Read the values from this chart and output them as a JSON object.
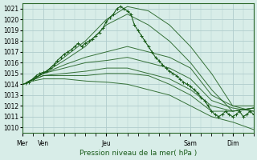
{
  "title": "",
  "xlabel": "Pression niveau de la mer( hPa )",
  "ylabel": "",
  "background_color": "#d8ede8",
  "grid_color": "#b0cccc",
  "line_color": "#1a5c1a",
  "ylim": [
    1009.5,
    1021.5
  ],
  "yticks": [
    1010,
    1011,
    1012,
    1013,
    1014,
    1015,
    1016,
    1017,
    1018,
    1019,
    1020,
    1021
  ],
  "day_labels": [
    "Mer",
    "Ven",
    "Jeu",
    "Sam",
    "Dim"
  ],
  "day_positions": [
    0,
    12,
    48,
    96,
    120
  ],
  "total_hours": 132
}
